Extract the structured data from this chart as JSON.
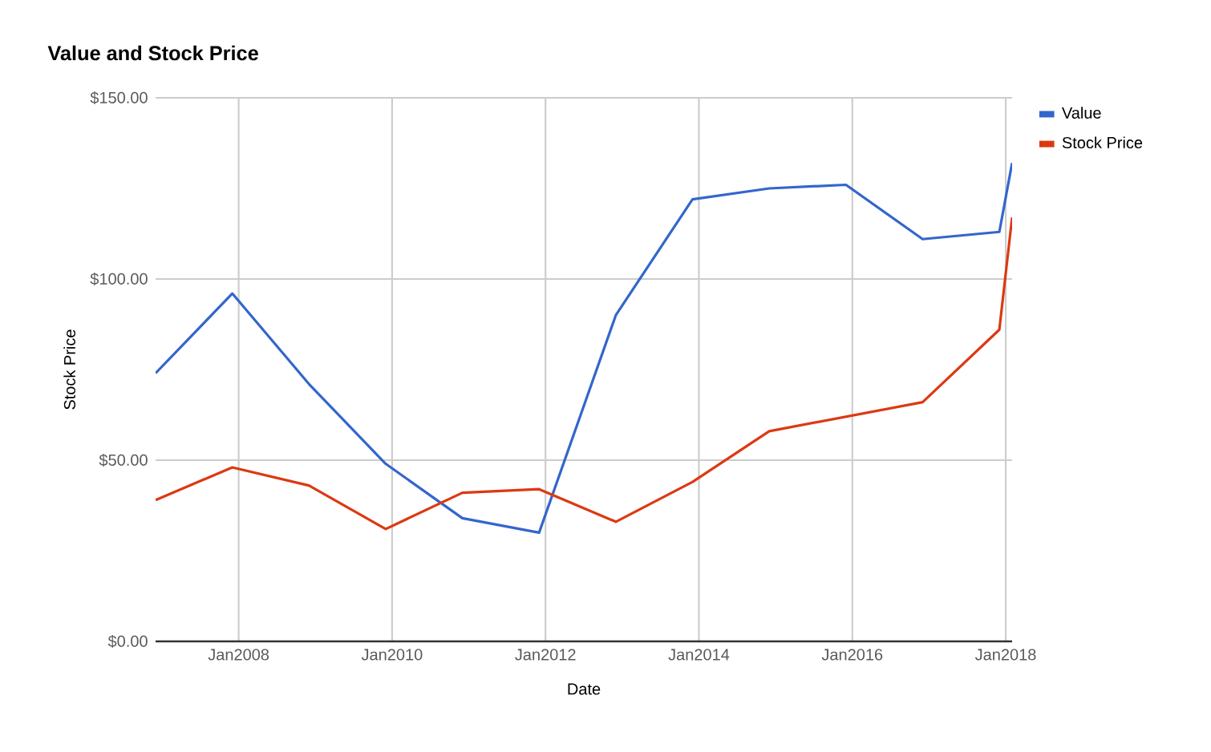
{
  "chart_data": {
    "type": "line",
    "title": "Value and Stock Price",
    "xlabel": "Date",
    "ylabel": "Stock Price",
    "x": [
      "2006-12",
      "2007-12",
      "2008-12",
      "2009-12",
      "2010-12",
      "2011-12",
      "2012-12",
      "2013-12",
      "2014-12",
      "2015-12",
      "2016-12",
      "2017-12",
      "2018-02"
    ],
    "series": [
      {
        "name": "Value",
        "color": "#3366cc",
        "values": [
          74,
          96,
          71,
          49,
          34,
          30,
          90,
          122,
          125,
          126,
          111,
          113,
          132
        ]
      },
      {
        "name": "Stock Price",
        "color": "#dc3912",
        "values": [
          39,
          48,
          43,
          31,
          41,
          42,
          33,
          44,
          58,
          62,
          66,
          86,
          117
        ]
      }
    ],
    "xlim": [
      "2006-12",
      "2018-02"
    ],
    "xticks": [
      {
        "value": "2008-01",
        "label": "Jan2008"
      },
      {
        "value": "2010-01",
        "label": "Jan2010"
      },
      {
        "value": "2012-01",
        "label": "Jan2012"
      },
      {
        "value": "2014-01",
        "label": "Jan2014"
      },
      {
        "value": "2016-01",
        "label": "Jan2016"
      },
      {
        "value": "2018-01",
        "label": "Jan2018"
      }
    ],
    "ylim": [
      0,
      150
    ],
    "yticks": [
      {
        "value": 0,
        "label": "$0.00"
      },
      {
        "value": 50,
        "label": "$50.00"
      },
      {
        "value": 100,
        "label": "$100.00"
      },
      {
        "value": 150,
        "label": "$150.00"
      }
    ],
    "grid": true,
    "legend": "right"
  }
}
